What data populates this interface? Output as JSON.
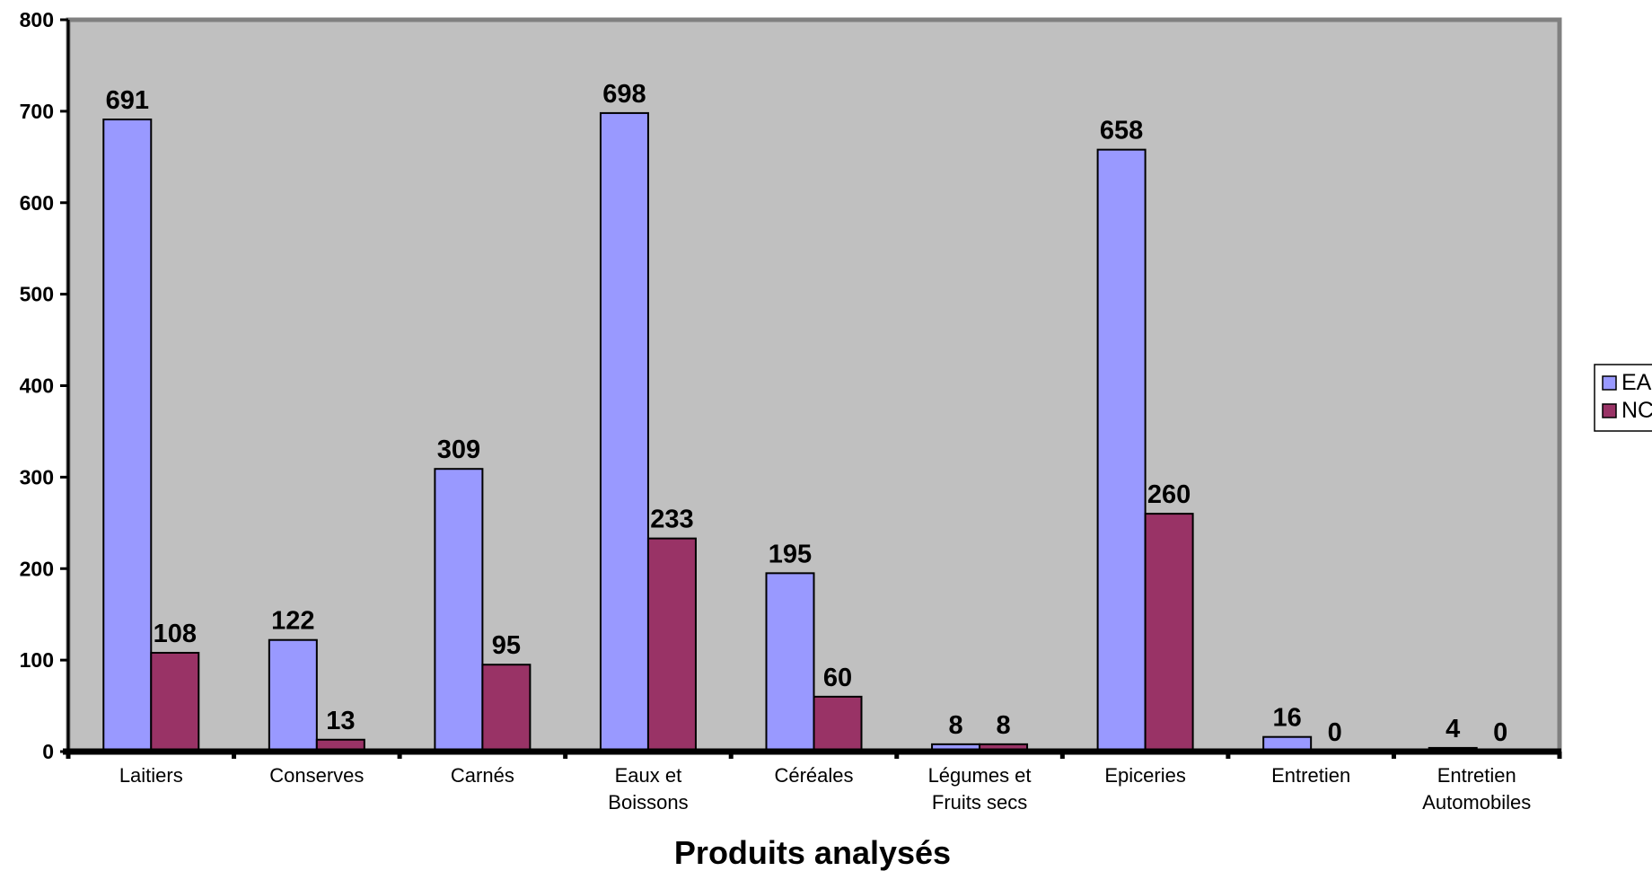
{
  "chart_data": {
    "type": "bar",
    "title": "",
    "xlabel": "Produits analysés",
    "ylabel": "",
    "ylim": [
      0,
      800
    ],
    "yticks": [
      0,
      100,
      200,
      300,
      400,
      500,
      600,
      700,
      800
    ],
    "grid": false,
    "legend_position": "right",
    "categories": [
      [
        "Laitiers"
      ],
      [
        "Conserves"
      ],
      [
        "Carnés"
      ],
      [
        "Eaux et",
        "Boissons"
      ],
      [
        "Céréales"
      ],
      [
        "Légumes et",
        "Fruits secs"
      ],
      [
        "Epiceries"
      ],
      [
        "Entretien"
      ],
      [
        "Entretien",
        "Automobiles"
      ]
    ],
    "series": [
      {
        "name": "EA",
        "color": "#9999ff",
        "values": [
          691,
          122,
          309,
          698,
          195,
          8,
          658,
          16,
          4
        ]
      },
      {
        "name": "NC",
        "color": "#993366",
        "values": [
          108,
          13,
          95,
          233,
          60,
          8,
          260,
          0,
          0
        ]
      }
    ],
    "plot_background": "#c0c0c0"
  }
}
